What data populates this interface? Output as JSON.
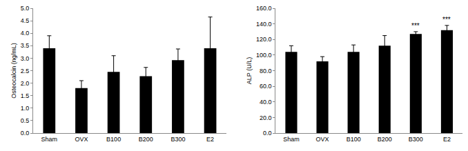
{
  "chart_data": [
    {
      "type": "bar",
      "y_label": "Osteocalcin (ng/mL)",
      "categories": [
        "Sham",
        "OVX",
        "B100",
        "B200",
        "B300",
        "E2"
      ],
      "values": [
        3.4,
        1.8,
        2.45,
        2.28,
        2.92,
        3.4
      ],
      "errors": [
        0.5,
        0.3,
        0.65,
        0.35,
        0.45,
        1.25
      ],
      "color": "#000000",
      "ylim": [
        0,
        5
      ],
      "yticks": [
        {
          "value": 0,
          "label": "0.0"
        },
        {
          "value": 0.5,
          "label": "0.5"
        },
        {
          "value": 1,
          "label": "1.0"
        },
        {
          "value": 1.5,
          "label": "1.5"
        },
        {
          "value": 2,
          "label": "2.0"
        },
        {
          "value": 2.5,
          "label": "2.5"
        },
        {
          "value": 3,
          "label": "3.0"
        },
        {
          "value": 3.5,
          "label": "3.5"
        },
        {
          "value": 4,
          "label": "4.0"
        },
        {
          "value": 4.5,
          "label": "4.5"
        },
        {
          "value": 5,
          "label": "5.0"
        }
      ],
      "grid": false
    },
    {
      "type": "bar",
      "y_label": "ALP (U/L)",
      "categories": [
        "Sham",
        "OVX",
        "B100",
        "B200",
        "B300",
        "E2"
      ],
      "values": [
        104,
        92,
        104,
        112,
        127,
        132
      ],
      "errors": [
        8,
        6,
        9,
        13,
        3,
        6
      ],
      "color": "#000000",
      "ylim": [
        0,
        160
      ],
      "yticks": [
        {
          "value": 0,
          "label": "0.0"
        },
        {
          "value": 20,
          "label": "20.0"
        },
        {
          "value": 40,
          "label": "40.0"
        },
        {
          "value": 60,
          "label": "60.0"
        },
        {
          "value": 80,
          "label": "80.0"
        },
        {
          "value": 100,
          "label": "100.0"
        },
        {
          "value": 120,
          "label": "120.0"
        },
        {
          "value": 140,
          "label": "140.0"
        },
        {
          "value": 160,
          "label": "160.0"
        }
      ],
      "annotations": [
        {
          "category": "B300",
          "text": "***"
        },
        {
          "category": "E2",
          "text": "***"
        }
      ],
      "grid": false
    }
  ]
}
